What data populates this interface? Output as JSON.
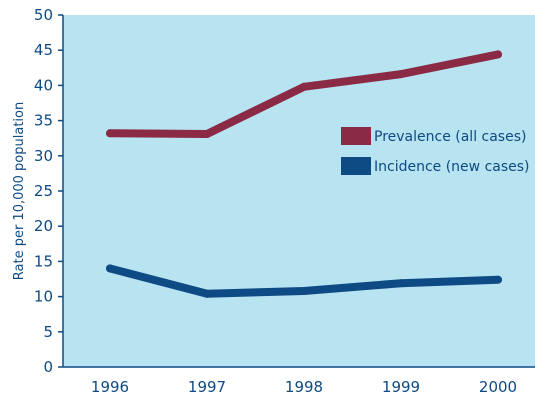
{
  "chart_data": {
    "type": "line",
    "title": "",
    "xlabel": "",
    "ylabel": "Rate per 10,000 population",
    "categories": [
      "1996",
      "1997",
      "1998",
      "1999",
      "2000"
    ],
    "ylim": [
      0,
      50
    ],
    "yticks": [
      0,
      5,
      10,
      15,
      20,
      25,
      30,
      35,
      40,
      45,
      50
    ],
    "grid": false,
    "legend_position": "right",
    "series": [
      {
        "name": "Prevalence (all cases)",
        "values": [
          33.2,
          33.1,
          39.8,
          41.6,
          44.4
        ],
        "color": "#8b2a45"
      },
      {
        "name": "Incidence (new cases)",
        "values": [
          14.0,
          10.4,
          10.8,
          11.9,
          12.4
        ],
        "color": "#0e4a83"
      }
    ],
    "colors": {
      "plot_background": "#b8e3f1",
      "text": "#0e4a83",
      "axis": "#0e4a83"
    }
  }
}
